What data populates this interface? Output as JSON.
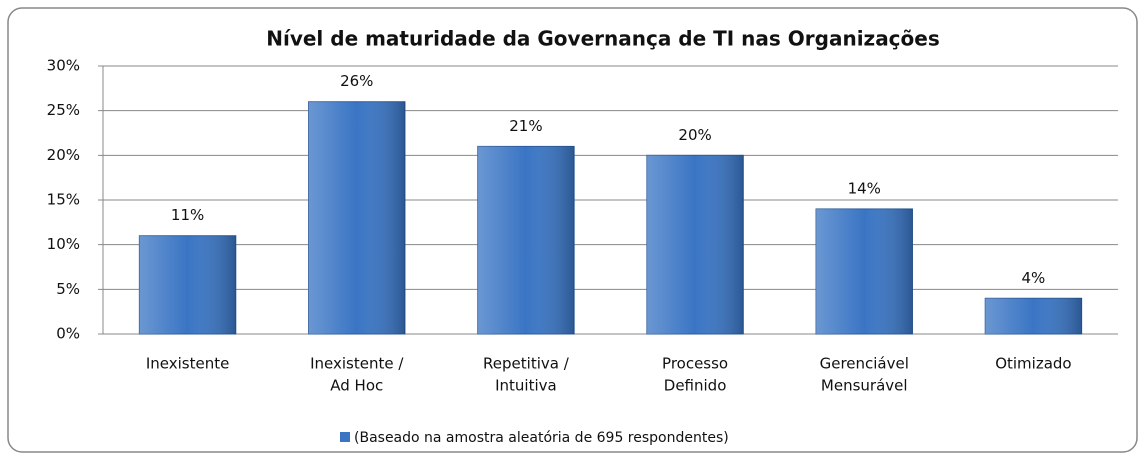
{
  "chart_data": {
    "type": "bar",
    "title": "Nível de maturidade  da Governança de TI nas Organizações",
    "categories": [
      [
        "Inexistente"
      ],
      [
        "Inexistente /",
        "Ad Hoc"
      ],
      [
        "Repetitiva /",
        "Intuitiva"
      ],
      [
        "Processo",
        "Definido"
      ],
      [
        "Gerenciável",
        "Mensurável"
      ],
      [
        "Otimizado"
      ]
    ],
    "series": [
      {
        "name": "(Baseado na amostra aleatória de 695 respondentes)",
        "color": "#3a75c4",
        "values": [
          11,
          26,
          21,
          20,
          14,
          4
        ],
        "value_labels": [
          "11%",
          "26%",
          "21%",
          "20%",
          "14%",
          "4%"
        ]
      }
    ],
    "ylim": [
      0,
      30
    ],
    "yticks": [
      {
        "value": 0,
        "label": "0%"
      },
      {
        "value": 5,
        "label": "5%"
      },
      {
        "value": 10,
        "label": "10%"
      },
      {
        "value": 15,
        "label": "15%"
      },
      {
        "value": 20,
        "label": "20%"
      },
      {
        "value": 25,
        "label": "25%"
      },
      {
        "value": 30,
        "label": "30%"
      }
    ],
    "grid": true,
    "legend": "bottom"
  }
}
